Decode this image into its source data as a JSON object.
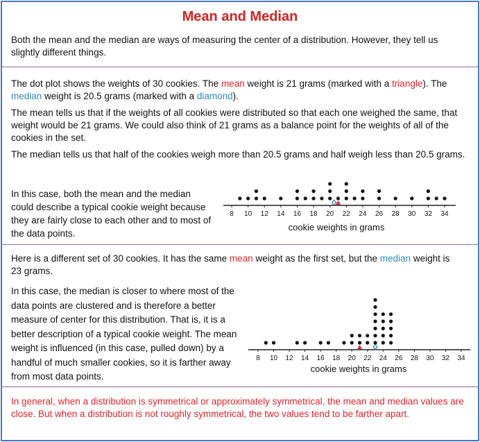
{
  "title": "Mean and Median",
  "intro": "Both the mean and the median are ways of measuring the center of a distribution.  However, they tell us slightly different things.",
  "section1": {
    "paragraphs": [
      [
        "The dot plot shows the weights of 30 cookies. The ",
        {
          "text": "mean",
          "color": "#e3242b"
        },
        " weight is 21 grams (marked with a ",
        {
          "text": "triangle",
          "color": "#e3242b"
        },
        "). The ",
        {
          "text": "median",
          "color": "#2e8bb5"
        },
        " weight is 20.5 grams (marked  with a ",
        {
          "text": "diamond",
          "color": "#2e8bb5"
        },
        ")."
      ],
      [
        "The mean tells us that if the weights of all cookies were distributed so that each one weighed the same, that weight would be 21 grams. We could also think of 21 grams as a balance point for the weights of all of the cookies in the set."
      ],
      [
        "The median tells us that half of the cookies weigh more than 20.5 grams and half weigh less than 20.5 grams."
      ]
    ],
    "side_text": "In this case, both the mean and the median could describe a typical cookie weight because they are fairly close to each other and to most of the data points.",
    "plot": {
      "xlim": [
        8,
        34
      ],
      "xticks": [
        8,
        10,
        12,
        14,
        16,
        18,
        20,
        22,
        24,
        26,
        28,
        30,
        32,
        34
      ],
      "xlabel": "cookie weights in grams",
      "mean": 21,
      "median": 20.5,
      "points": [
        {
          "x": 9,
          "count": 1
        },
        {
          "x": 10,
          "count": 1
        },
        {
          "x": 11,
          "count": 2
        },
        {
          "x": 12,
          "count": 1
        },
        {
          "x": 14,
          "count": 1
        },
        {
          "x": 16,
          "count": 2
        },
        {
          "x": 17,
          "count": 1
        },
        {
          "x": 18,
          "count": 2
        },
        {
          "x": 19,
          "count": 1
        },
        {
          "x": 20,
          "count": 3
        },
        {
          "x": 21,
          "count": 1
        },
        {
          "x": 22,
          "count": 3
        },
        {
          "x": 23,
          "count": 1
        },
        {
          "x": 24,
          "count": 2
        },
        {
          "x": 26,
          "count": 2
        },
        {
          "x": 28,
          "count": 1
        },
        {
          "x": 30,
          "count": 1
        },
        {
          "x": 32,
          "count": 2
        },
        {
          "x": 33,
          "count": 1
        },
        {
          "x": 34,
          "count": 1
        }
      ]
    }
  },
  "section2": {
    "paragraphs": [
      [
        "Here is a different set of 30 cookies. It has the same ",
        {
          "text": "mean",
          "color": "#e3242b"
        },
        " weight as the first set, but the ",
        {
          "text": "median",
          "color": "#2e8bb5"
        },
        " weight is 23 grams."
      ]
    ],
    "side_text": "In this case, the median is closer to where most of the data points are clustered and is therefore a better measure of center for this distribution. That is, it is a better description of a typical cookie weight. The mean weight is influenced (in this case, pulled down)  by a handful of much smaller cookies, so it is farther away from most data points.",
    "plot": {
      "xlim": [
        8,
        34
      ],
      "xticks": [
        8,
        10,
        12,
        14,
        16,
        18,
        20,
        22,
        24,
        26,
        28,
        30,
        32,
        34
      ],
      "xlabel": "cookie weights in grams",
      "mean": 21,
      "median": 23,
      "points": [
        {
          "x": 9,
          "count": 1
        },
        {
          "x": 10,
          "count": 1
        },
        {
          "x": 13,
          "count": 1
        },
        {
          "x": 14,
          "count": 1
        },
        {
          "x": 16,
          "count": 1
        },
        {
          "x": 17,
          "count": 1
        },
        {
          "x": 19,
          "count": 1
        },
        {
          "x": 20,
          "count": 2
        },
        {
          "x": 21,
          "count": 2
        },
        {
          "x": 22,
          "count": 2
        },
        {
          "x": 23,
          "count": 7
        },
        {
          "x": 24,
          "count": 5
        },
        {
          "x": 25,
          "count": 5
        }
      ]
    }
  },
  "conclusion": "In general, when a distribution is symmetrical or approximately symmetrical, the mean and median values are close. But when a distribution is not roughly symmetrical, the two values tend to be farther apart."
}
